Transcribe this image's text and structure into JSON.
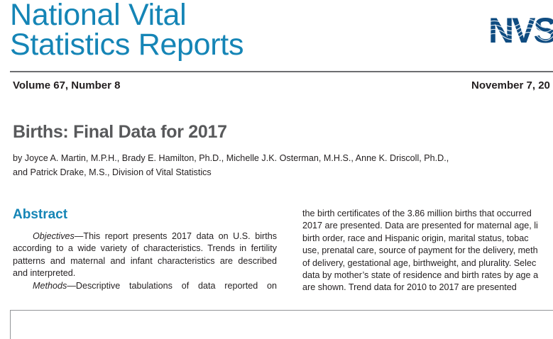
{
  "masthead": {
    "line1": "National Vital",
    "line2": "Statistics Reports",
    "logo_text": "NVSS"
  },
  "issue": {
    "volume": "Volume 67, Number 8",
    "date": "November 7, 20"
  },
  "report": {
    "title": "Births: Final Data for 2017",
    "authors_line1": "by Joyce A. Martin, M.P.H., Brady E. Hamilton, Ph.D., Michelle J.K. Osterman, M.H.S., Anne K. Driscoll, Ph.D.,",
    "authors_line2": "and Patrick Drake, M.S., Division of Vital Statistics"
  },
  "abstract": {
    "heading": "Abstract",
    "objectives_label": "Objectives",
    "objectives_dash": "—This report presents 2017 data on U.S. births",
    "left_lines": [
      "according to a wide variety of characteristics. Trends in fertility",
      "patterns and maternal and infant characteristics are described",
      "and interpreted."
    ],
    "methods_label": "Methods",
    "methods_dash": "—Descriptive tabulations of data reported on",
    "right_lines": [
      "the birth certificates of the 3.86 million births that occurred",
      "2017 are presented. Data are presented for maternal age, li",
      "birth order, race and Hispanic origin, marital status, tobac",
      "use, prenatal care, source of payment for the delivery, meth",
      "of delivery, gestational age, birthweight, and plurality. Selec",
      "data by mother’s state of residence and birth rates by age a",
      "are shown. Trend data for 2010 to 2017 are presented"
    ]
  },
  "colors": {
    "brand_blue": "#1585b6",
    "title_gray": "#58595b",
    "text": "#231f20",
    "logo_navy": "#0f4c81"
  }
}
